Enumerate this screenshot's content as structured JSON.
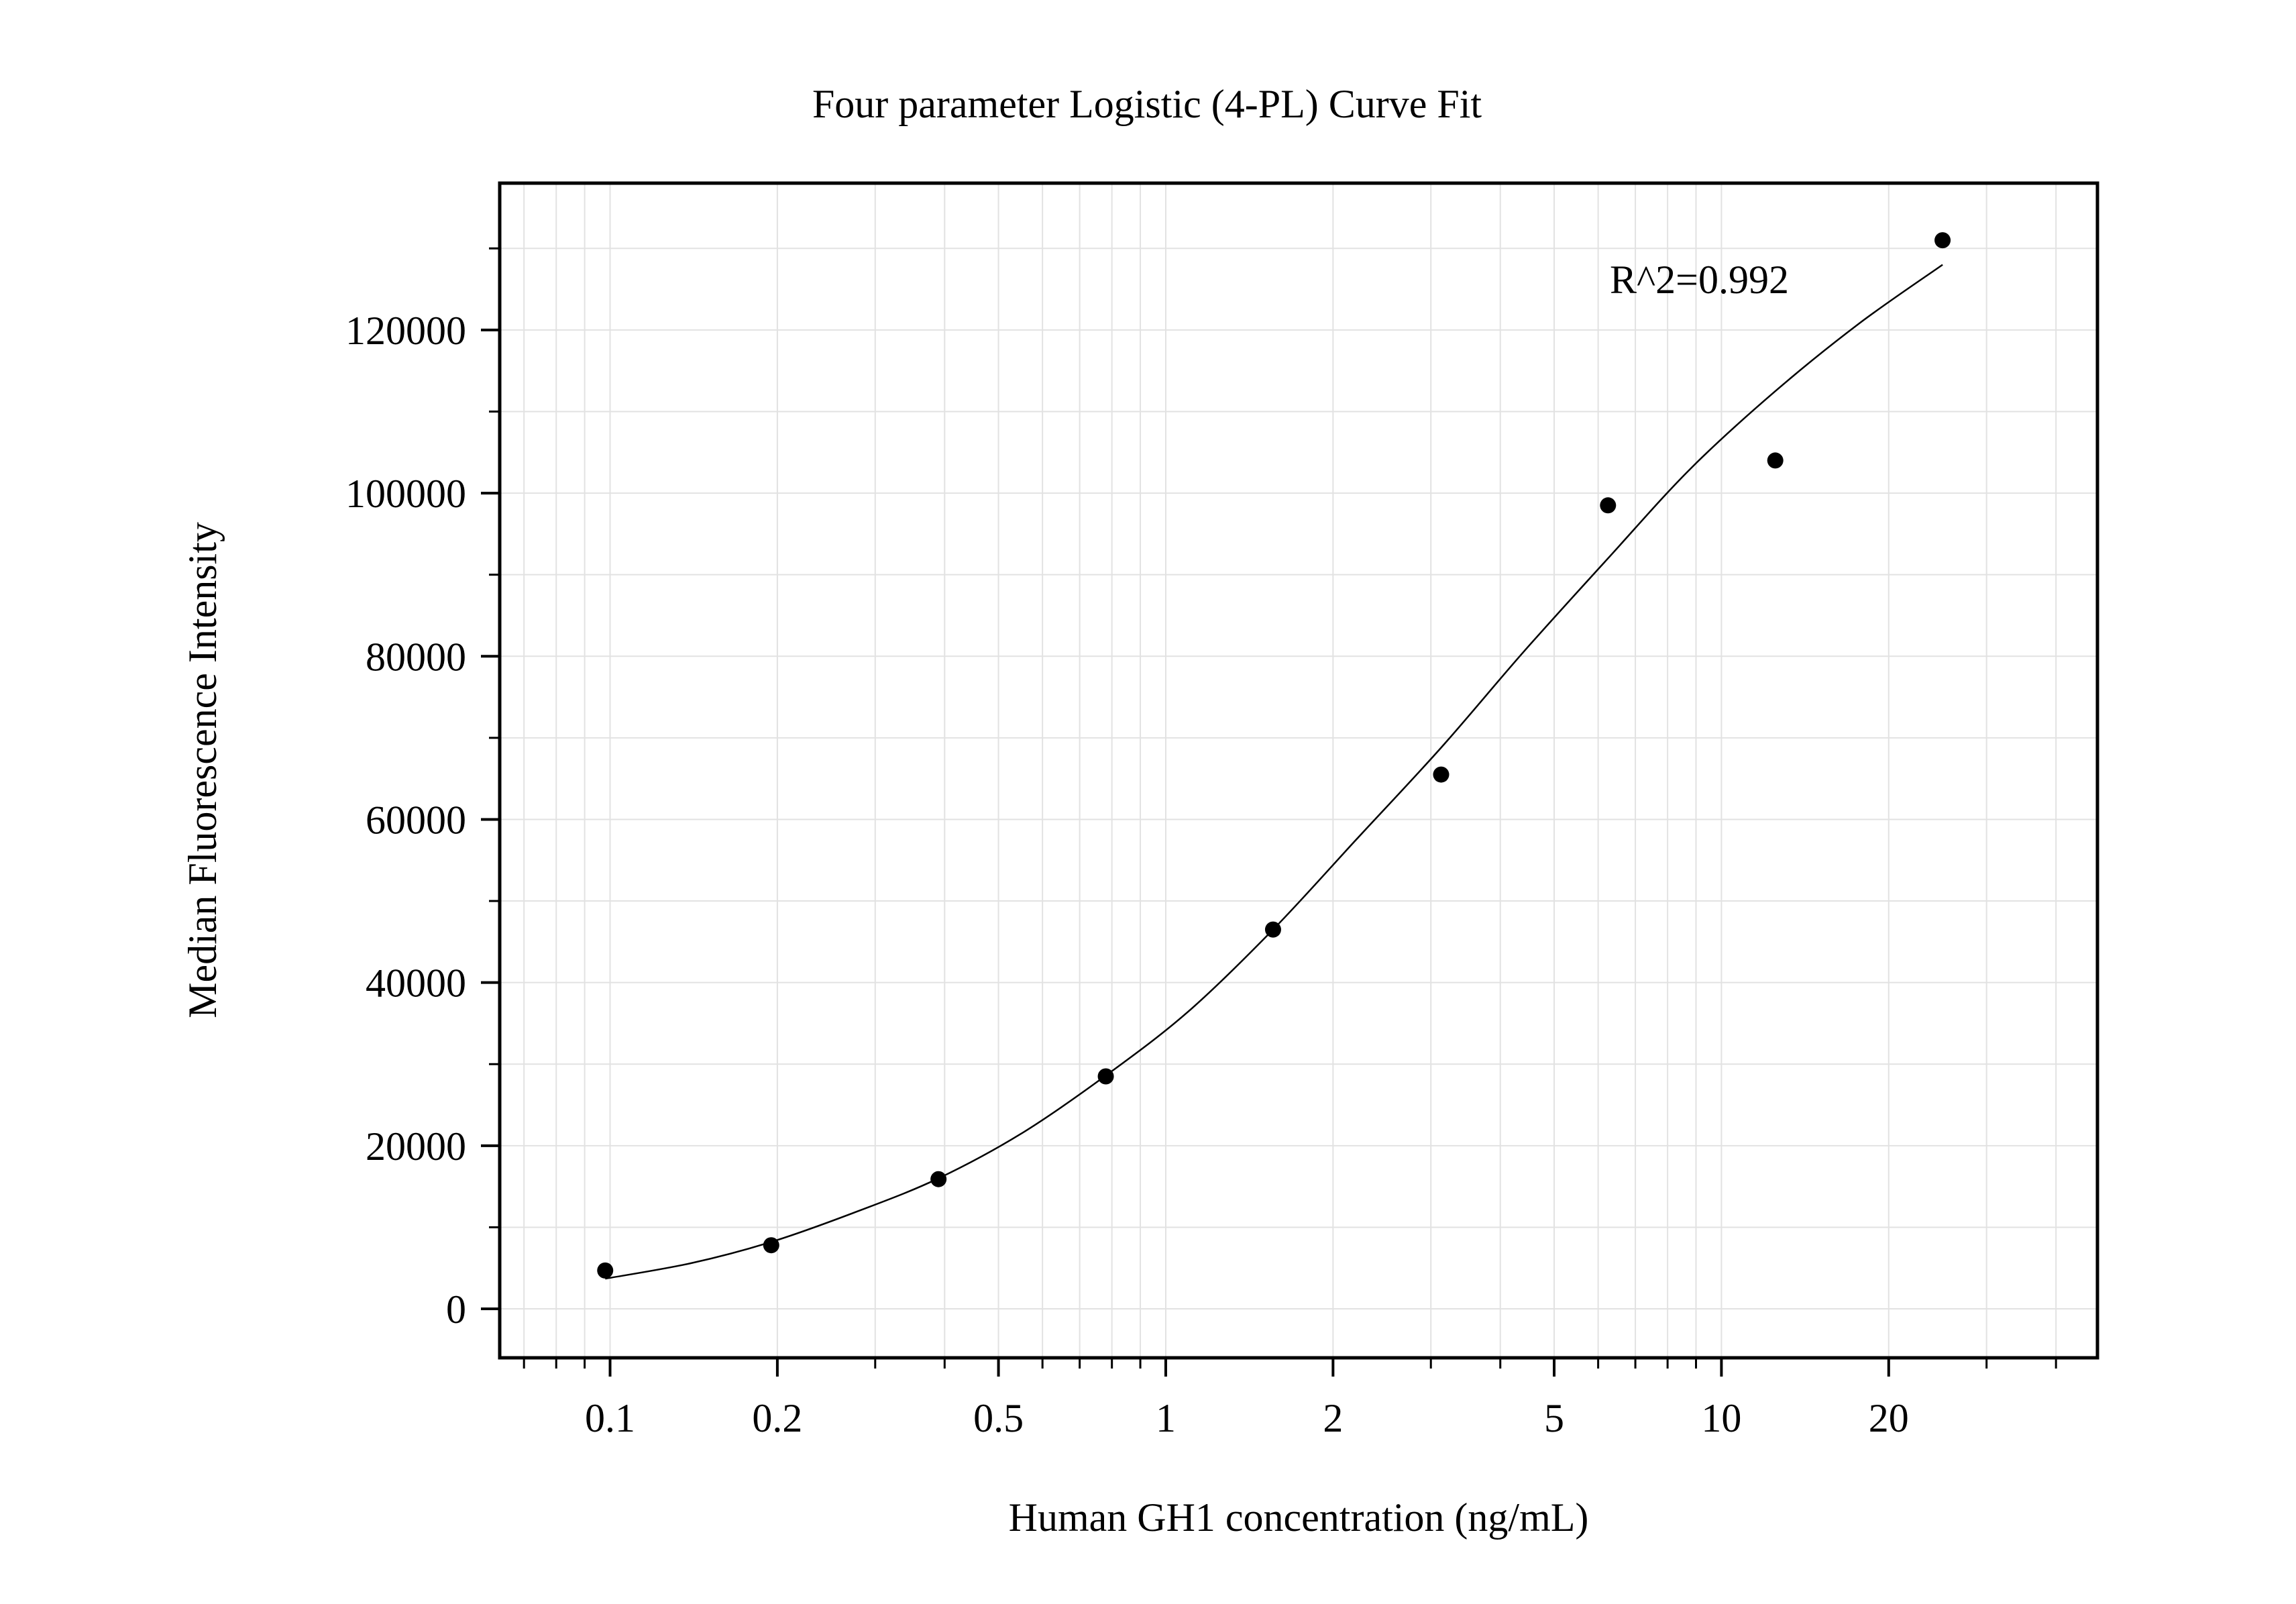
{
  "chart_data": {
    "type": "scatter",
    "title": "Four parameter Logistic (4-PL) Curve Fit",
    "xlabel": "Human GH1 concentration (ng/mL)",
    "ylabel": "Median Fluorescence Intensity",
    "x_scale": "log",
    "xlim": [
      0.0633,
      47.5
    ],
    "ylim": [
      -6000,
      138000
    ],
    "x_ticks": [
      {
        "value": 0.1,
        "label": "0.1"
      },
      {
        "value": 0.2,
        "label": "0.2"
      },
      {
        "value": 0.5,
        "label": "0.5"
      },
      {
        "value": 1,
        "label": "1"
      },
      {
        "value": 2,
        "label": "2"
      },
      {
        "value": 5,
        "label": "5"
      },
      {
        "value": 10,
        "label": "10"
      },
      {
        "value": 20,
        "label": "20"
      }
    ],
    "y_ticks": [
      {
        "value": 0,
        "label": "0"
      },
      {
        "value": 20000,
        "label": "20000"
      },
      {
        "value": 40000,
        "label": "40000"
      },
      {
        "value": 60000,
        "label": "60000"
      },
      {
        "value": 80000,
        "label": "80000"
      },
      {
        "value": 100000,
        "label": "100000"
      },
      {
        "value": 120000,
        "label": "120000"
      }
    ],
    "grid": true,
    "points": [
      {
        "x": 0.098,
        "y": 4700
      },
      {
        "x": 0.195,
        "y": 7800
      },
      {
        "x": 0.39,
        "y": 15900
      },
      {
        "x": 0.78,
        "y": 28500
      },
      {
        "x": 1.56,
        "y": 46500
      },
      {
        "x": 3.13,
        "y": 65500
      },
      {
        "x": 6.25,
        "y": 98500
      },
      {
        "x": 12.5,
        "y": 104000
      },
      {
        "x": 25,
        "y": 131000
      }
    ],
    "fit_curve": {
      "model": "4-PL",
      "x": [
        0.098,
        0.14,
        0.195,
        0.28,
        0.39,
        0.55,
        0.78,
        1.1,
        1.56,
        2.2,
        3.13,
        4.4,
        6.25,
        8.8,
        12.5,
        17.7,
        25
      ],
      "y": [
        3700,
        5600,
        8200,
        12000,
        16000,
        21500,
        28600,
        36500,
        46500,
        57500,
        68800,
        80500,
        92000,
        103000,
        112500,
        120800,
        128000
      ]
    },
    "annotations": [
      {
        "text": "R^2=0.992",
        "x": 5.6,
        "y": 124000
      }
    ],
    "colors": {
      "points": "#000000",
      "curve": "#000000",
      "grid": "#e2e2e2",
      "frame": "#000000"
    }
  }
}
